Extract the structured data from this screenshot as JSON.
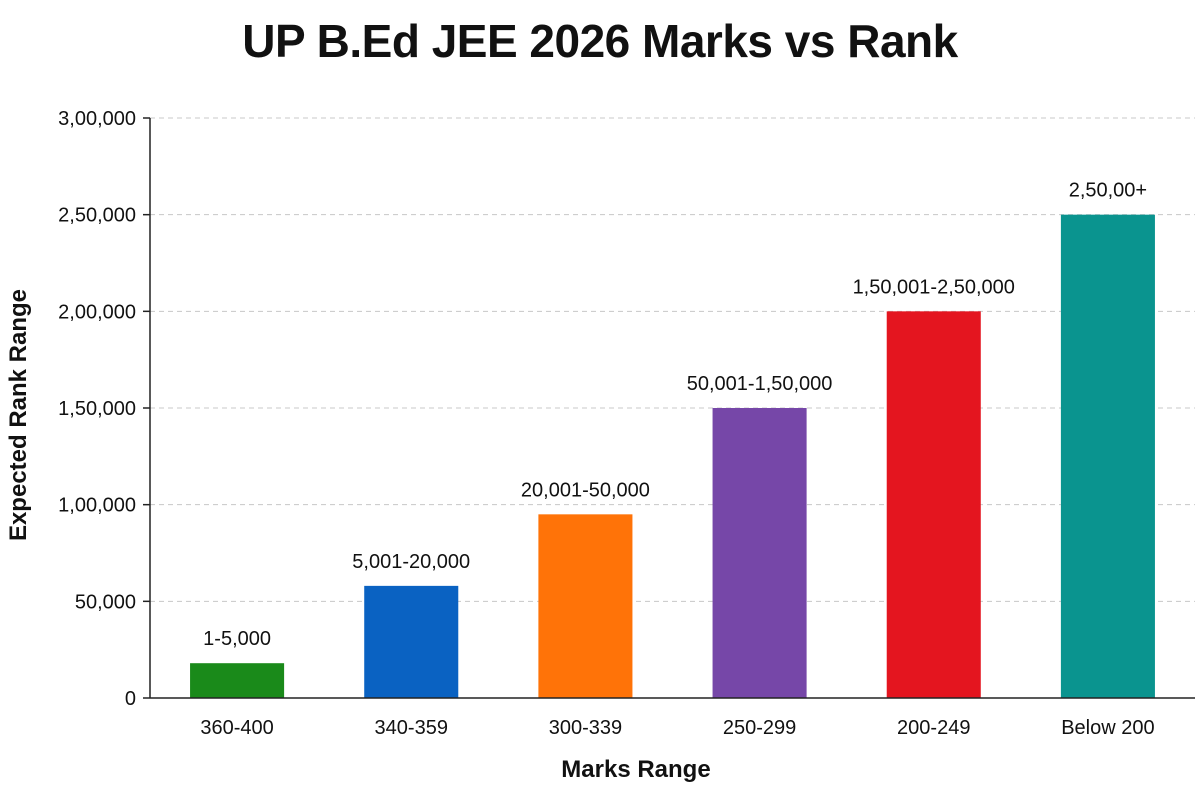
{
  "chart_data": {
    "type": "bar",
    "title": "UP B.Ed JEE 2026 Marks vs Rank",
    "xlabel": "Marks Range",
    "ylabel": "Expected Rank Range",
    "categories": [
      "360-400",
      "340-359",
      "300-339",
      "250-299",
      "200-249",
      "Below 200"
    ],
    "values": [
      18000,
      58000,
      95000,
      150000,
      200000,
      250000
    ],
    "data_labels": [
      "1-5,000",
      "5,001-20,000",
      "20,001-50,000",
      "50,001-1,50,000",
      "1,50,001-2,50,000",
      "2,50,00+"
    ],
    "colors": [
      "#1a8a1a",
      "#0a62c2",
      "#ff7308",
      "#7647a8",
      "#e4151f",
      "#0a948f"
    ],
    "ylim": [
      0,
      300000
    ],
    "yticks": [
      0,
      50000,
      100000,
      150000,
      200000,
      250000,
      300000
    ],
    "ytick_labels": [
      "0",
      "50,000",
      "1,00,000",
      "1,50,000",
      "2,00,000",
      "2,50,000",
      "3,00,000"
    ],
    "grid": true,
    "legend": "none"
  }
}
